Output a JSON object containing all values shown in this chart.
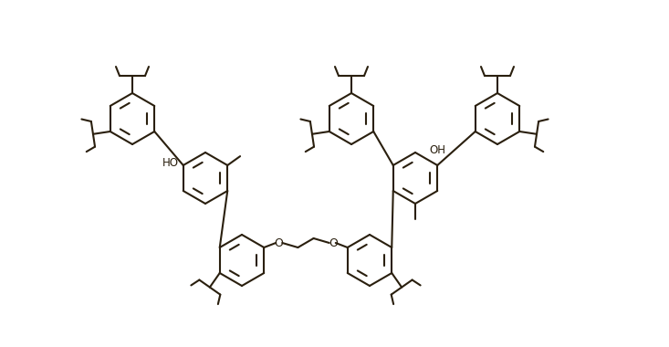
{
  "line_color": "#2a1f0e",
  "line_width": 1.5,
  "background": "#ffffff",
  "figsize": [
    7.33,
    3.8
  ],
  "dpi": 100,
  "xlim": [
    0.0,
    7.33
  ],
  "ylim": [
    0.0,
    3.8
  ]
}
